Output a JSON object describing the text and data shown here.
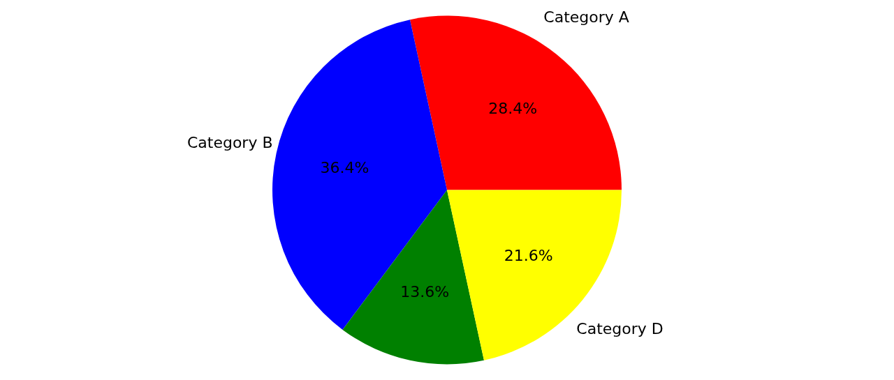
{
  "chart_data": {
    "type": "pie",
    "categories": [
      "Category A",
      "Category B",
      null,
      "Category D"
    ],
    "values": [
      28.4,
      36.4,
      13.6,
      21.6
    ],
    "colors": [
      "#ff0000",
      "#0000ff",
      "#008000",
      "#ffff00"
    ],
    "value_labels": [
      "28.4%",
      "36.4%",
      "13.6%",
      "21.6%"
    ]
  }
}
